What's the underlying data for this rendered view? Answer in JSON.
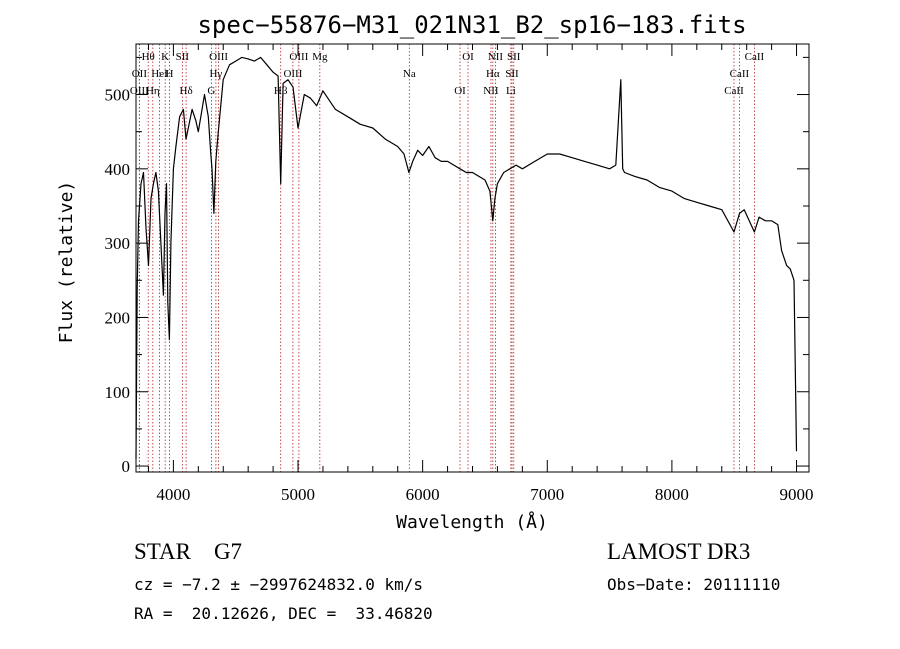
{
  "title": "spec−55876−M31_021N31_B2_sp16−183.fits",
  "chart_data": {
    "type": "line",
    "xlabel": "Wavelength (Å)",
    "ylabel": "Flux (relative)",
    "xlim": [
      3700,
      9100
    ],
    "ylim": [
      -8,
      568
    ],
    "xticks": [
      4000,
      5000,
      6000,
      7000,
      8000,
      9000
    ],
    "yticks": [
      0,
      100,
      200,
      300,
      400,
      500
    ],
    "grid": false,
    "spectrum": {
      "x": [
        3700,
        3710,
        3720,
        3740,
        3760,
        3780,
        3800,
        3820,
        3840,
        3860,
        3880,
        3900,
        3920,
        3933,
        3945,
        3955,
        3968,
        3980,
        4000,
        4020,
        4050,
        4080,
        4101,
        4120,
        4150,
        4180,
        4200,
        4220,
        4250,
        4280,
        4300,
        4310,
        4325,
        4340,
        4360,
        4400,
        4450,
        4500,
        4550,
        4600,
        4650,
        4700,
        4750,
        4800,
        4840,
        4861,
        4880,
        4920,
        4960,
        5000,
        5050,
        5100,
        5150,
        5200,
        5300,
        5400,
        5500,
        5600,
        5700,
        5800,
        5850,
        5890,
        5920,
        5960,
        6000,
        6050,
        6100,
        6150,
        6200,
        6250,
        6300,
        6350,
        6400,
        6450,
        6500,
        6540,
        6563,
        6580,
        6600,
        6650,
        6700,
        6750,
        6800,
        6900,
        7000,
        7100,
        7200,
        7300,
        7400,
        7500,
        7550,
        7590,
        7605,
        7620,
        7700,
        7800,
        7900,
        8000,
        8100,
        8200,
        8300,
        8400,
        8498,
        8542,
        8580,
        8662,
        8700,
        8750,
        8800,
        8850,
        8880,
        8920,
        8950,
        8980,
        9000
      ],
      "y": [
        10,
        240,
        330,
        380,
        395,
        320,
        270,
        360,
        380,
        395,
        370,
        300,
        230,
        340,
        380,
        220,
        170,
        300,
        400,
        430,
        470,
        480,
        440,
        455,
        480,
        465,
        450,
        470,
        500,
        470,
        420,
        400,
        340,
        410,
        450,
        520,
        540,
        545,
        550,
        548,
        545,
        550,
        540,
        530,
        525,
        380,
        515,
        520,
        510,
        455,
        500,
        495,
        485,
        505,
        480,
        470,
        460,
        455,
        440,
        430,
        420,
        395,
        410,
        425,
        418,
        430,
        415,
        410,
        410,
        405,
        400,
        395,
        395,
        390,
        385,
        370,
        330,
        360,
        380,
        395,
        400,
        405,
        400,
        410,
        420,
        420,
        415,
        410,
        405,
        400,
        405,
        520,
        400,
        395,
        390,
        385,
        375,
        370,
        360,
        355,
        350,
        345,
        315,
        340,
        345,
        315,
        335,
        330,
        330,
        325,
        290,
        270,
        265,
        250,
        20
      ]
    },
    "lines": [
      {
        "label": "Hθ",
        "x": 3798
      },
      {
        "label": "OII",
        "x": 3727
      },
      {
        "label": "OIII",
        "x": 3727
      },
      {
        "label": "K",
        "x": 3934
      },
      {
        "label": "HeI",
        "x": 3889
      },
      {
        "label": "Hη",
        "x": 3835
      },
      {
        "label": "SII",
        "x": 4072
      },
      {
        "label": "H",
        "x": 3969
      },
      {
        "label": "Hδ",
        "x": 4102
      },
      {
        "label": "OIII",
        "x": 4363
      },
      {
        "label": "Hγ",
        "x": 4341
      },
      {
        "label": "G",
        "x": 4305
      },
      {
        "label": "OIII",
        "x": 5007
      },
      {
        "label": "OIII",
        "x": 4959
      },
      {
        "label": "Hβ",
        "x": 4861
      },
      {
        "label": "Mg",
        "x": 5175
      },
      {
        "label": "Na",
        "x": 5893
      },
      {
        "label": "OI",
        "x": 6300
      },
      {
        "label": "OI",
        "x": 6364
      },
      {
        "label": "Hα",
        "x": 6563
      },
      {
        "label": "NII",
        "x": 6548
      },
      {
        "label": "NII",
        "x": 6584
      },
      {
        "label": "SII",
        "x": 6717
      },
      {
        "label": "Li",
        "x": 6708
      },
      {
        "label": "SII",
        "x": 6731
      },
      {
        "label": "CaII",
        "x": 8542
      },
      {
        "label": "CaII",
        "x": 8498
      },
      {
        "label": "CaII",
        "x": 8662
      }
    ],
    "line_color": "#000000",
    "marker_color": "#b22222"
  },
  "info": {
    "class_text": "STAR    G7",
    "survey": "LAMOST DR3",
    "cz_text": "cz = −7.2 ± −2997624832.0 km/s",
    "obs_date": "Obs−Date: 20111110",
    "coords": "RA =  20.12626, DEC =  33.46820"
  }
}
